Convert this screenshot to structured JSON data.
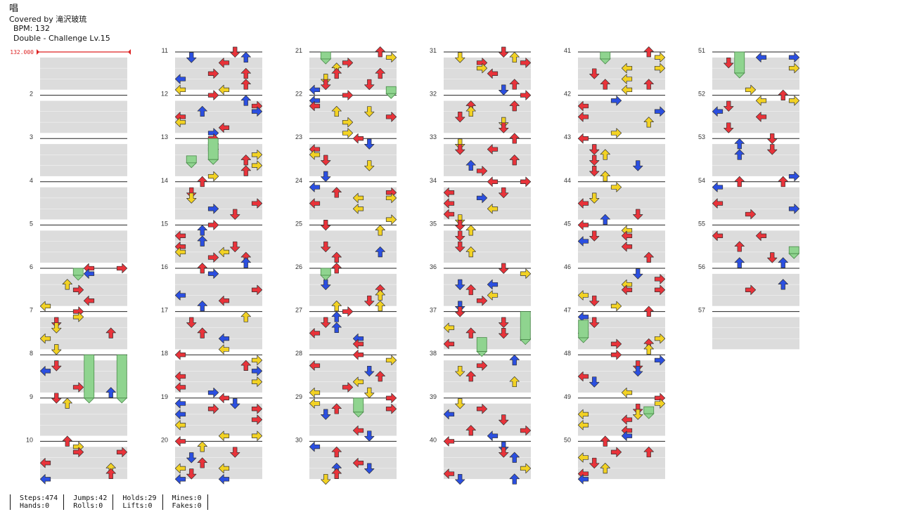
{
  "header": {
    "song_title": "唱",
    "artist": "Covered by 滝沢玻琉",
    "bpm": "BPM: 132",
    "difficulty": "Double - Challenge Lv.15"
  },
  "bpm_marker": "132.000",
  "colors": {
    "quarter": "#e8333a",
    "eighth": "#2b4fe0",
    "sixteenth": "#f2d224",
    "hold": "#8fd48f",
    "mine": "#e040e0"
  },
  "measures": [
    "2",
    "3",
    "4",
    "5",
    "6",
    "7",
    "8",
    "9",
    "10",
    "11",
    "12",
    "13",
    "14",
    "15",
    "16",
    "17",
    "18",
    "19",
    "20",
    "21",
    "22",
    "23",
    "24",
    "25",
    "26",
    "27",
    "28",
    "29",
    "30",
    "31",
    "32",
    "33",
    "34",
    "35",
    "36",
    "37",
    "38",
    "39",
    "40",
    "41",
    "42",
    "43",
    "44",
    "45",
    "46",
    "47",
    "48",
    "49",
    "50",
    "51",
    "52",
    "53",
    "54",
    "55",
    "56",
    "57"
  ],
  "stats": [
    [
      "Steps:474",
      "Hands:0"
    ],
    [
      "Jumps:42",
      "Rolls:0"
    ],
    [
      "Holds:29",
      "Lifts:0"
    ],
    [
      "Mines:0",
      "Fakes:0"
    ]
  ]
}
